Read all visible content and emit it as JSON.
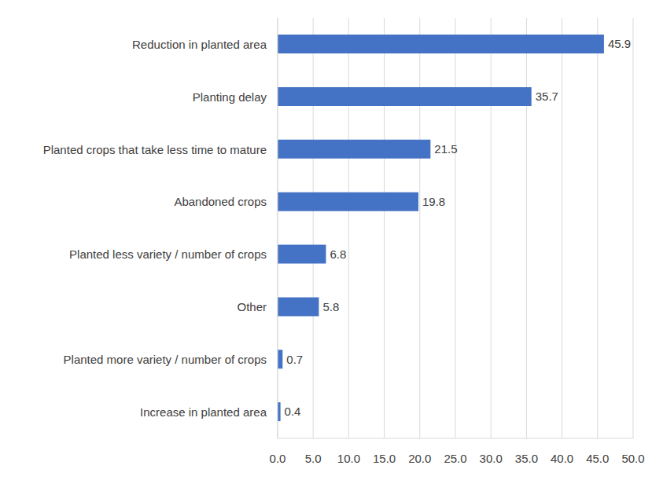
{
  "chart_data": {
    "type": "bar",
    "orientation": "horizontal",
    "categories": [
      "Reduction in planted area",
      "Planting delay",
      "Planted crops that take less time to mature",
      "Abandoned crops",
      "Planted less variety / number of crops",
      "Other",
      "Planted more variety / number of crops",
      "Increase in planted area"
    ],
    "values": [
      45.9,
      35.7,
      21.5,
      19.8,
      6.8,
      5.8,
      0.7,
      0.4
    ],
    "color": "#4472c4",
    "xlim": [
      0,
      50
    ],
    "xticks": [
      {
        "value": 0,
        "label": "0.0"
      },
      {
        "value": 5,
        "label": "5.0"
      },
      {
        "value": 10,
        "label": "10.0"
      },
      {
        "value": 15,
        "label": "15.0"
      },
      {
        "value": 20,
        "label": "20.0"
      },
      {
        "value": 25,
        "label": "25.0"
      },
      {
        "value": 30,
        "label": "30.0"
      },
      {
        "value": 35,
        "label": "35.0"
      },
      {
        "value": 40,
        "label": "40.0"
      },
      {
        "value": 45,
        "label": "45.0"
      },
      {
        "value": 50,
        "label": "50.0"
      }
    ],
    "grid": true,
    "data_labels": true
  }
}
